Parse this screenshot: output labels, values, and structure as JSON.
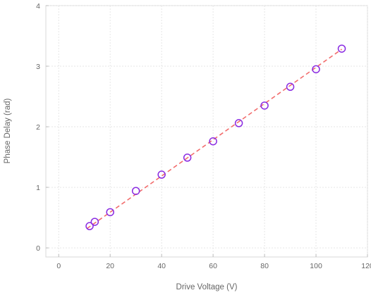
{
  "chart_data": {
    "type": "scatter",
    "title": "",
    "xlabel": "Drive Voltage (V)",
    "ylabel": "Phase Delay (rad)",
    "xlim": [
      -5,
      120
    ],
    "ylim": [
      -0.15,
      4
    ],
    "xticks": [
      0,
      20,
      40,
      60,
      80,
      100,
      120
    ],
    "yticks": [
      0,
      1,
      2,
      3,
      4
    ],
    "grid": true,
    "legend": "none",
    "series": [
      {
        "marker": "open-circle",
        "color": "#8a2be2",
        "x": [
          12,
          14,
          20,
          30,
          40,
          50,
          60,
          70,
          80,
          90,
          100,
          110
        ],
        "y": [
          0.36,
          0.43,
          0.59,
          0.94,
          1.21,
          1.49,
          1.76,
          2.06,
          2.35,
          2.66,
          2.95,
          3.29
        ]
      },
      {
        "style": "dashed-line",
        "color": "#f26d6d",
        "x": [
          11,
          110
        ],
        "y": [
          0.32,
          3.28
        ]
      }
    ]
  }
}
